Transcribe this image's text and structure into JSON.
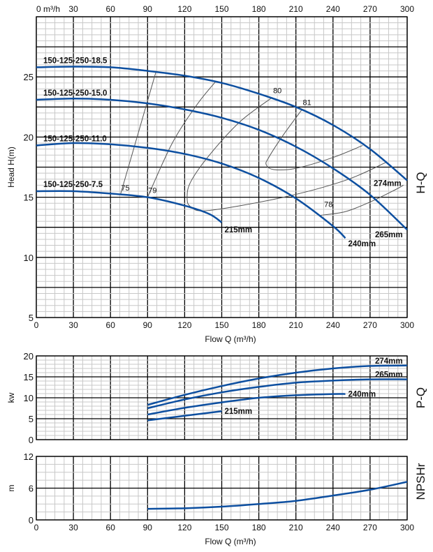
{
  "chart_data": [
    {
      "type": "line",
      "title": "H-Q",
      "xlabel": "Flow Q (m³/h)",
      "ylabel": "Head H(m)",
      "top_axis_unit": "m³/h",
      "xlim": [
        0,
        300
      ],
      "ylim": [
        5,
        30
      ],
      "xticks": [
        0,
        30,
        60,
        90,
        120,
        150,
        180,
        210,
        240,
        270,
        300
      ],
      "yticks": [
        5,
        10,
        15,
        20,
        25
      ],
      "grid": true,
      "series": [
        {
          "name": "274mm",
          "model": "150-125-250-18.5",
          "x": [
            0,
            30,
            60,
            90,
            120,
            150,
            180,
            210,
            240,
            270,
            300
          ],
          "y": [
            25.8,
            25.85,
            25.8,
            25.5,
            25.1,
            24.5,
            23.6,
            22.5,
            21.0,
            19.0,
            16.4
          ]
        },
        {
          "name": "265mm",
          "model": "150-125-250-15.0",
          "x": [
            0,
            30,
            60,
            90,
            120,
            150,
            180,
            210,
            240,
            270,
            300
          ],
          "y": [
            23.1,
            23.2,
            23.1,
            22.8,
            22.3,
            21.6,
            20.6,
            19.2,
            17.4,
            15.2,
            12.3
          ]
        },
        {
          "name": "240mm",
          "model": "150-125-250-11.0",
          "x": [
            0,
            30,
            60,
            90,
            120,
            150,
            180,
            210,
            240,
            250
          ],
          "y": [
            19.3,
            19.5,
            19.4,
            19.1,
            18.6,
            17.8,
            16.6,
            14.9,
            12.6,
            11.6
          ]
        },
        {
          "name": "215mm",
          "model": "150-125-250-7.5",
          "x": [
            0,
            30,
            60,
            90,
            120,
            140,
            150
          ],
          "y": [
            15.5,
            15.5,
            15.3,
            15.0,
            14.3,
            13.6,
            12.9
          ]
        }
      ],
      "efficiency": [
        {
          "label": "75",
          "x": [
            68,
            97
          ],
          "y": [
            15.2,
            25.5
          ]
        },
        {
          "label": "79",
          "x": [
            90,
            110,
            130,
            145
          ],
          "y": [
            15.0,
            19.5,
            22.7,
            24.6
          ]
        },
        {
          "label": "80",
          "x": [
            191,
            165,
            140,
            125,
            122,
            125,
            140,
            200,
            250,
            283
          ],
          "y": [
            23.3,
            21.3,
            18.5,
            16.3,
            15.0,
            14.2,
            13.9,
            15.0,
            16.4,
            17.9
          ]
        },
        {
          "label": "81",
          "x": [
            215,
            200,
            188,
            186,
            192,
            210,
            240,
            264
          ],
          "y": [
            22.3,
            20.2,
            18.3,
            17.7,
            17.3,
            17.4,
            18.3,
            19.3
          ]
        },
        {
          "label": "78",
          "x": [
            230,
            250,
            270,
            290,
            297
          ],
          "y": [
            13.5,
            13.8,
            14.6,
            15.6,
            16.0
          ]
        }
      ]
    },
    {
      "type": "line",
      "title": "P-Q",
      "ylabel": "kw",
      "xlim": [
        0,
        300
      ],
      "ylim": [
        0,
        20
      ],
      "yticks": [
        0,
        5,
        10,
        15,
        20
      ],
      "grid": true,
      "series": [
        {
          "name": "274mm",
          "x": [
            90,
            120,
            150,
            180,
            210,
            240,
            270,
            300
          ],
          "y": [
            8.3,
            10.7,
            12.8,
            14.6,
            16.0,
            17.0,
            17.6,
            17.7
          ]
        },
        {
          "name": "265mm",
          "x": [
            90,
            120,
            150,
            180,
            210,
            240,
            270,
            300
          ],
          "y": [
            7.5,
            9.6,
            11.3,
            12.6,
            13.6,
            14.1,
            14.4,
            14.4
          ]
        },
        {
          "name": "240mm",
          "x": [
            90,
            120,
            150,
            180,
            210,
            240,
            250
          ],
          "y": [
            6.0,
            7.6,
            8.9,
            10.0,
            10.6,
            10.9,
            10.9
          ]
        },
        {
          "name": "215mm",
          "x": [
            90,
            120,
            150
          ],
          "y": [
            4.6,
            5.7,
            6.8
          ]
        }
      ]
    },
    {
      "type": "line",
      "title": "NPSHr",
      "xlabel": "Flow Q (m³/h)",
      "ylabel": "m",
      "xlim": [
        0,
        300
      ],
      "ylim": [
        0,
        12
      ],
      "yticks": [
        0,
        6,
        12
      ],
      "grid": true,
      "series": [
        {
          "name": "NPSHr",
          "x": [
            90,
            120,
            150,
            180,
            210,
            240,
            270,
            300
          ],
          "y": [
            2.1,
            2.2,
            2.5,
            3.0,
            3.6,
            4.6,
            5.7,
            7.2
          ]
        }
      ]
    }
  ],
  "colors": {
    "curve": "#0d4fa0",
    "eff": "#555555",
    "major": "#000000",
    "minor": "#c8c8c8"
  }
}
